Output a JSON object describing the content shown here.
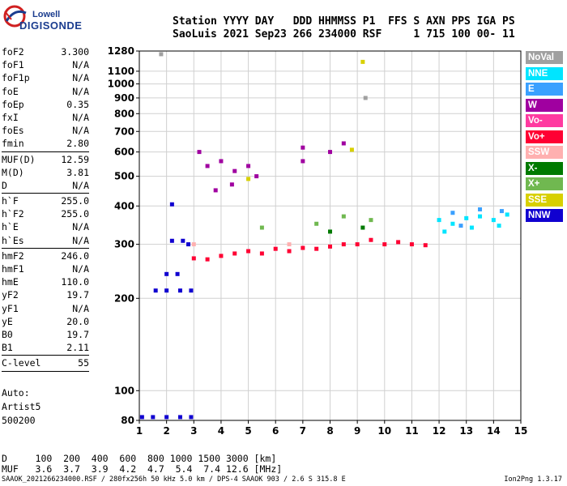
{
  "logo": {
    "line1": "Lowell",
    "line2": "DIGISONDE"
  },
  "header": {
    "line1": "Station YYYY DAY   DDD HHMMSS P1  FFS S AXN PPS IGA PS",
    "line2": "SaoLuis 2021 Sep23 266 234000 RSF     1 715 100 00- 11"
  },
  "params": [
    [
      {
        "k": "foF2",
        "v": "3.300"
      },
      {
        "k": "foF1",
        "v": "N/A"
      },
      {
        "k": "foF1p",
        "v": "N/A"
      },
      {
        "k": "foE",
        "v": "N/A"
      },
      {
        "k": "foEp",
        "v": "0.35"
      },
      {
        "k": "fxI",
        "v": "N/A"
      },
      {
        "k": "foEs",
        "v": "N/A"
      },
      {
        "k": "fmin",
        "v": "2.80"
      }
    ],
    [
      {
        "k": "MUF(D)",
        "v": "12.59"
      },
      {
        "k": "M(D)",
        "v": "3.81"
      },
      {
        "k": "D",
        "v": "N/A"
      }
    ],
    [
      {
        "k": "h`F",
        "v": "255.0"
      },
      {
        "k": "h`F2",
        "v": "255.0"
      },
      {
        "k": "h`E",
        "v": "N/A"
      },
      {
        "k": "h`Es",
        "v": "N/A"
      }
    ],
    [
      {
        "k": "hmF2",
        "v": "246.0"
      },
      {
        "k": "hmF1",
        "v": "N/A"
      },
      {
        "k": "hmE",
        "v": "110.0"
      },
      {
        "k": "yF2",
        "v": "19.7"
      },
      {
        "k": "yF1",
        "v": "N/A"
      },
      {
        "k": "yE",
        "v": "20.0"
      },
      {
        "k": "B0",
        "v": "19.7"
      },
      {
        "k": "B1",
        "v": "2.11"
      }
    ],
    [
      {
        "k": "C-level",
        "v": "55"
      }
    ]
  ],
  "misc": {
    "auto": "Auto:",
    "artist": "Artist5",
    "code": "500200"
  },
  "legend": [
    {
      "name": "NoVal",
      "color": "#a0a0a0"
    },
    {
      "name": "NNE",
      "color": "#00e5ff"
    },
    {
      "name": "E",
      "color": "#3aa0ff"
    },
    {
      "name": "W",
      "color": "#a000a0"
    },
    {
      "name": "Vo-",
      "color": "#ff3aa0"
    },
    {
      "name": "Vo+",
      "color": "#ff0033"
    },
    {
      "name": "SSW",
      "color": "#ffb0b0"
    },
    {
      "name": "X-",
      "color": "#007a00"
    },
    {
      "name": "X+",
      "color": "#70b850"
    },
    {
      "name": "SSE",
      "color": "#d8d000"
    },
    {
      "name": "NNW",
      "color": "#1000d0"
    }
  ],
  "footer": {
    "d_line": "D     100  200  400  600  800 1000 1500 3000 [km]",
    "muf_line": "MUF   3.6  3.7  3.9  4.2  4.7  5.4  7.4 12.6 [MHz]",
    "file_line": "SAAOK_2021266234000.RSF / 280fx256h 50 kHz 5.0 km / DPS-4 SAAOK 903 / 2.6 S 315.8 E",
    "version": "Ion2Png 1.3.17"
  },
  "chart_data": {
    "type": "scatter",
    "title": "",
    "xlabel": "",
    "ylabel": "",
    "xlim": [
      1,
      15
    ],
    "ylim": [
      80,
      1280
    ],
    "xticks": [
      1,
      2,
      3,
      4,
      5,
      6,
      7,
      8,
      9,
      10,
      11,
      12,
      13,
      14,
      15
    ],
    "yticks": [
      80,
      100,
      200,
      300,
      400,
      500,
      600,
      700,
      800,
      900,
      1000,
      1100,
      1280
    ],
    "grid": true,
    "y_scale": "log",
    "series": [
      {
        "name": "NNW",
        "points": [
          [
            1.1,
            82
          ],
          [
            1.5,
            82
          ],
          [
            2.0,
            82
          ],
          [
            2.5,
            82
          ],
          [
            2.9,
            82
          ],
          [
            1.6,
            212
          ],
          [
            2.0,
            212
          ],
          [
            2.5,
            212
          ],
          [
            2.9,
            212
          ],
          [
            2.0,
            240
          ],
          [
            2.4,
            240
          ],
          [
            2.8,
            300
          ],
          [
            2.2,
            308
          ],
          [
            2.6,
            308
          ],
          [
            2.2,
            405
          ]
        ]
      },
      {
        "name": "Vo+",
        "points": [
          [
            3.0,
            270
          ],
          [
            3.5,
            268
          ],
          [
            4.0,
            275
          ],
          [
            4.5,
            280
          ],
          [
            5.0,
            285
          ],
          [
            5.5,
            280
          ],
          [
            6.0,
            290
          ],
          [
            6.5,
            285
          ],
          [
            7.0,
            292
          ],
          [
            7.5,
            290
          ],
          [
            8.0,
            295
          ],
          [
            8.5,
            300
          ],
          [
            9.0,
            300
          ],
          [
            9.5,
            310
          ],
          [
            10.0,
            300
          ],
          [
            10.5,
            305
          ],
          [
            11.0,
            300
          ],
          [
            11.5,
            298
          ]
        ]
      },
      {
        "name": "W",
        "points": [
          [
            3.5,
            540
          ],
          [
            4.0,
            560
          ],
          [
            4.5,
            520
          ],
          [
            5.0,
            540
          ],
          [
            5.3,
            500
          ],
          [
            3.8,
            450
          ],
          [
            4.4,
            470
          ],
          [
            7.0,
            620
          ],
          [
            7.0,
            560
          ],
          [
            8.0,
            600
          ],
          [
            8.5,
            640
          ],
          [
            3.2,
            600
          ]
        ]
      },
      {
        "name": "NNE",
        "points": [
          [
            12.0,
            360
          ],
          [
            12.5,
            350
          ],
          [
            13.0,
            365
          ],
          [
            13.5,
            370
          ],
          [
            14.0,
            360
          ],
          [
            14.5,
            375
          ],
          [
            12.2,
            330
          ],
          [
            13.2,
            340
          ],
          [
            14.2,
            345
          ]
        ]
      },
      {
        "name": "E",
        "points": [
          [
            12.5,
            380
          ],
          [
            13.5,
            390
          ],
          [
            14.3,
            385
          ],
          [
            12.8,
            345
          ]
        ]
      },
      {
        "name": "SSE",
        "points": [
          [
            9.2,
            1180
          ],
          [
            5.0,
            490
          ],
          [
            8.8,
            610
          ]
        ]
      },
      {
        "name": "X+",
        "points": [
          [
            7.5,
            350
          ],
          [
            8.5,
            370
          ],
          [
            9.5,
            360
          ],
          [
            5.5,
            340
          ]
        ]
      },
      {
        "name": "SSW",
        "points": [
          [
            3.0,
            300
          ],
          [
            6.5,
            300
          ]
        ]
      },
      {
        "name": "X-",
        "points": [
          [
            8.0,
            330
          ],
          [
            9.2,
            340
          ]
        ]
      },
      {
        "name": "NoVal",
        "points": [
          [
            1.8,
            1250
          ],
          [
            9.3,
            900
          ]
        ]
      }
    ]
  }
}
